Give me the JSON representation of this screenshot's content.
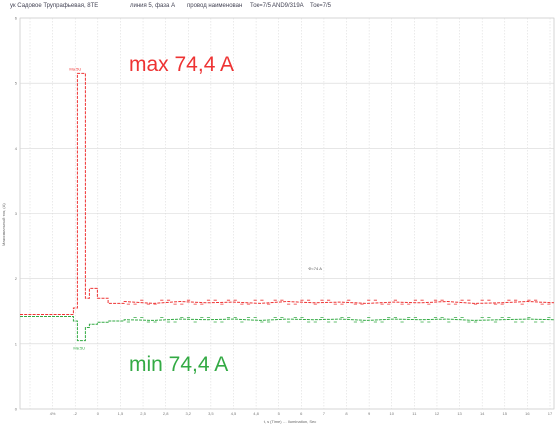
{
  "header": {
    "items": [
      "ук Садовое Трупрафьевая, 8ТЕ",
      "линия 5, фаза А",
      "провод наименован",
      "Ток=7/5",
      "AND9/319A",
      "Ток=7/5"
    ]
  },
  "chart_data": {
    "type": "line",
    "title": "",
    "xlabel": "t, s (Time) … Ilumination, Sec",
    "ylabel": "Максимальный ток, (A)",
    "ylim": [
      0,
      6
    ],
    "xlim": [
      0,
      20
    ],
    "y_ticks": [
      "0",
      "1",
      "2",
      "3",
      "4",
      "5",
      "6"
    ],
    "x_ticks": [
      "",
      "4%",
      "-2",
      "0",
      "1,5",
      "2,5",
      "2,8",
      "3,2",
      "3,5",
      "4,5",
      "4,8",
      "5",
      "6",
      "7",
      "8",
      "9",
      "10",
      "11",
      "12",
      "13",
      "14",
      "15",
      "16",
      "17"
    ],
    "grid": true,
    "series": [
      {
        "name": "",
        "color": "#ee3333",
        "x": [
          0,
          1.5,
          2.0,
          2.0,
          2.15,
          2.15,
          2.45,
          2.45,
          2.6,
          2.6,
          2.9,
          2.9,
          3.3,
          3.3,
          3.9,
          3.9,
          5,
          6,
          7,
          8,
          9,
          10,
          11,
          12,
          13,
          14,
          15,
          16,
          17,
          18,
          19,
          20
        ],
        "values": [
          1.45,
          1.45,
          1.45,
          1.55,
          1.55,
          5.15,
          5.15,
          1.7,
          1.7,
          1.85,
          1.85,
          1.7,
          1.7,
          1.62,
          1.62,
          1.65,
          1.62,
          1.65,
          1.63,
          1.64,
          1.62,
          1.65,
          1.63,
          1.64,
          1.62,
          1.64,
          1.63,
          1.65,
          1.62,
          1.63,
          1.65,
          1.63
        ]
      },
      {
        "name": "",
        "color": "#33aa44",
        "x": [
          0,
          1.5,
          2.0,
          2.0,
          2.15,
          2.15,
          2.45,
          2.45,
          2.6,
          2.6,
          2.9,
          2.9,
          3.3,
          3.3,
          3.9,
          3.9,
          5,
          6,
          7,
          8,
          9,
          10,
          11,
          12,
          13,
          14,
          15,
          16,
          17,
          18,
          19,
          20
        ],
        "values": [
          1.42,
          1.42,
          1.42,
          1.35,
          1.35,
          1.05,
          1.05,
          1.25,
          1.25,
          1.3,
          1.3,
          1.33,
          1.33,
          1.35,
          1.35,
          1.37,
          1.36,
          1.38,
          1.37,
          1.38,
          1.36,
          1.38,
          1.37,
          1.38,
          1.36,
          1.38,
          1.37,
          1.38,
          1.36,
          1.37,
          1.38,
          1.37
        ]
      }
    ],
    "annotations": [
      {
        "text": "max 74,4 A",
        "color": "#ee3333"
      },
      {
        "text": "min 74,4 A",
        "color": "#33aa44"
      },
      {
        "text": "Ф=74 A",
        "color": "#555555"
      },
      {
        "text": "Ма:5U",
        "color": "#ee3333"
      },
      {
        "text": "Мв:5U",
        "color": "#33aa44"
      }
    ]
  }
}
